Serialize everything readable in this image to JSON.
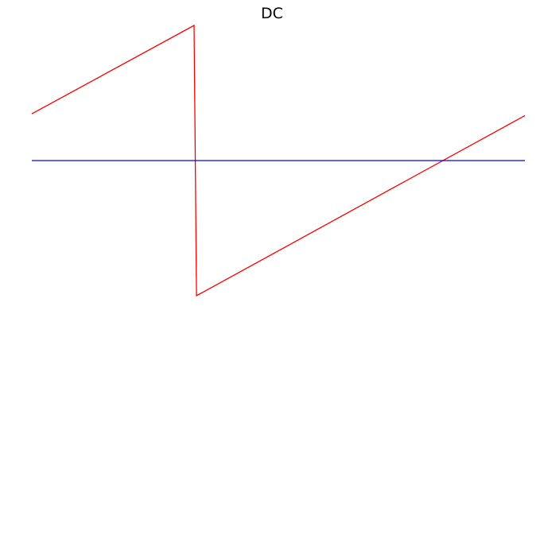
{
  "chart_data": {
    "type": "line",
    "title": "DC",
    "xlabel": "",
    "ylabel": "",
    "axes_visible": false,
    "grid": false,
    "xlim": [
      0,
      1
    ],
    "ylim": [
      -3,
      1
    ],
    "series": [
      {
        "color": "#ff0000",
        "x": [
          0,
          0.329,
          0.334,
          1
        ],
        "y": [
          0.346,
          1,
          -1,
          0.333
        ]
      },
      {
        "color": "#0000ff",
        "x": [
          0,
          1
        ],
        "y": [
          0,
          0
        ]
      }
    ]
  }
}
